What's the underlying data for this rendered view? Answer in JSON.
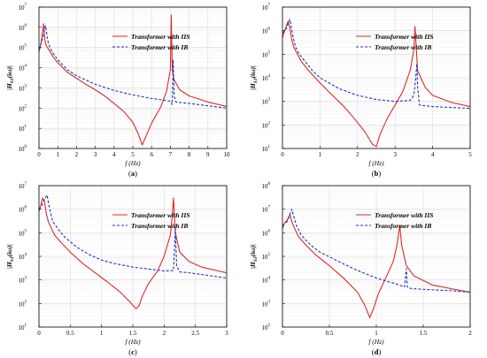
{
  "colors": {
    "iis": "#e02828",
    "ib": "#1f2fbf",
    "grid": "#d8d8d8",
    "axis": "#000000"
  },
  "chart_data": [
    {
      "type": "line",
      "panel_label": "(a)",
      "xlabel": "f (Hz)",
      "ylabel": "|H_SJ(iω)|",
      "xlim": [
        0,
        10
      ],
      "ylim_exponents": [
        0,
        7
      ],
      "yscale": "log",
      "grid": true,
      "legend": "top-right",
      "xticks": [
        0,
        1,
        2,
        3,
        4,
        5,
        6,
        7,
        8,
        9,
        10
      ],
      "xtick_labels": [
        "0",
        "1",
        "2",
        "3",
        "4",
        "5",
        "6",
        "7",
        "8",
        "9",
        "10"
      ],
      "series": [
        {
          "name": "Transformer with IIS",
          "color": "iis",
          "dash": false,
          "x": [
            0,
            0.1,
            0.15,
            0.2,
            0.25,
            0.3,
            0.35,
            0.45,
            0.6,
            0.8,
            1.0,
            1.5,
            2.0,
            2.5,
            3.0,
            3.5,
            4.0,
            4.5,
            5.0,
            5.3,
            5.5,
            5.7,
            6.0,
            6.5,
            6.8,
            7.0,
            7.05,
            7.1,
            7.2,
            7.5,
            8.0,
            9.0,
            10.0
          ],
          "y": [
            60000,
            150000,
            300000,
            700000,
            1500000,
            300000,
            150000,
            100000,
            60000,
            30000,
            18000,
            6000,
            3000,
            1500,
            800,
            400,
            170,
            70,
            20,
            5,
            1.5,
            4,
            18,
            120,
            700,
            8000,
            4000000,
            8000,
            2500,
            800,
            400,
            200,
            120
          ]
        },
        {
          "name": "Transformer with IB",
          "color": "ib",
          "dash": true,
          "x": [
            0,
            0.1,
            0.2,
            0.3,
            0.35,
            0.4,
            0.45,
            0.55,
            0.7,
            1.0,
            1.5,
            2.0,
            3.0,
            4.0,
            5.0,
            6.0,
            7.0,
            7.1,
            7.15,
            7.2,
            7.3,
            7.5,
            8.0,
            9.0,
            10.0
          ],
          "y": [
            80000,
            150000,
            300000,
            800000,
            1200000,
            600000,
            250000,
            120000,
            60000,
            25000,
            8000,
            4000,
            1500,
            750,
            450,
            300,
            220,
            150,
            25000,
            400,
            200,
            190,
            170,
            130,
            100
          ]
        }
      ]
    },
    {
      "type": "line",
      "panel_label": "(b)",
      "xlabel": "f (Hz)",
      "ylabel": "|H_SJ(iω)|",
      "xlim": [
        0,
        5
      ],
      "ylim_exponents": [
        1,
        7
      ],
      "yscale": "log",
      "grid": true,
      "legend": "top-right",
      "xticks": [
        0,
        1,
        2,
        3,
        4,
        5
      ],
      "xtick_labels": [
        "0",
        "1",
        "2",
        "3",
        "4",
        "5"
      ],
      "series": [
        {
          "name": "Transformer with IIS",
          "color": "iis",
          "dash": false,
          "x": [
            0,
            0.05,
            0.1,
            0.15,
            0.2,
            0.25,
            0.3,
            0.4,
            0.5,
            0.7,
            1.0,
            1.3,
            1.6,
            1.9,
            2.2,
            2.4,
            2.5,
            2.6,
            2.8,
            3.0,
            3.2,
            3.4,
            3.5,
            3.53,
            3.6,
            3.8,
            4.0,
            4.5,
            5.0
          ],
          "y": [
            500000,
            900000,
            1500000,
            2500000,
            1200000,
            400000,
            200000,
            100000,
            50000,
            20000,
            6000,
            2000,
            700,
            200,
            50,
            15,
            12,
            40,
            200,
            700,
            2500,
            20000,
            150000,
            1500000,
            20000,
            4000,
            1800,
            900,
            600
          ]
        },
        {
          "name": "Transformer with IB",
          "color": "ib",
          "dash": true,
          "x": [
            0,
            0.1,
            0.15,
            0.2,
            0.25,
            0.3,
            0.35,
            0.45,
            0.6,
            0.8,
            1.0,
            1.5,
            2.0,
            2.5,
            3.0,
            3.4,
            3.5,
            3.55,
            3.58,
            3.6,
            3.65,
            3.8,
            4.0,
            4.5,
            5.0
          ],
          "y": [
            800000,
            1200000,
            2000000,
            3000000,
            1000000,
            400000,
            200000,
            100000,
            50000,
            20000,
            10000,
            3500,
            1800,
            1200,
            1000,
            1100,
            1800,
            10000,
            40000,
            4000,
            700,
            650,
            600,
            550,
            500
          ]
        }
      ]
    },
    {
      "type": "line",
      "panel_label": "(c)",
      "xlabel": "f (Hz)",
      "ylabel": "|H_SJ(iω)|",
      "xlim": [
        0,
        3
      ],
      "ylim_exponents": [
        1,
        7
      ],
      "yscale": "log",
      "grid": true,
      "legend": "top-right",
      "xticks": [
        0,
        0.5,
        1,
        1.5,
        2,
        2.5,
        3
      ],
      "xtick_labels": [
        "0",
        "0.5",
        "1",
        "1.5",
        "2",
        "2.5",
        "3"
      ],
      "series": [
        {
          "name": "Transformer with IIS",
          "color": "iis",
          "dash": false,
          "x": [
            0,
            0.03,
            0.06,
            0.09,
            0.12,
            0.15,
            0.2,
            0.25,
            0.35,
            0.5,
            0.7,
            0.9,
            1.1,
            1.3,
            1.45,
            1.55,
            1.6,
            1.65,
            1.75,
            1.9,
            2.0,
            2.1,
            2.13,
            2.15,
            2.18,
            2.25,
            2.4,
            2.6,
            3.0
          ],
          "y": [
            800000,
            1500000,
            3000000,
            2000000,
            600000,
            300000,
            150000,
            80000,
            40000,
            15000,
            5000,
            2000,
            800,
            300,
            120,
            60,
            80,
            200,
            700,
            2500,
            10000,
            80000,
            500000,
            3000000,
            100000,
            15000,
            6000,
            3500,
            2000
          ]
        },
        {
          "name": "Transformer with IB",
          "color": "ib",
          "dash": true,
          "x": [
            0,
            0.05,
            0.1,
            0.13,
            0.15,
            0.18,
            0.22,
            0.3,
            0.4,
            0.6,
            0.8,
            1.0,
            1.2,
            1.5,
            1.8,
            2.0,
            2.15,
            2.18,
            2.2,
            2.25,
            2.4,
            2.6,
            3.0
          ],
          "y": [
            1000000,
            1500000,
            3000000,
            4000000,
            2000000,
            800000,
            300000,
            150000,
            70000,
            25000,
            12000,
            7000,
            5000,
            3500,
            2800,
            2400,
            2500,
            150000,
            4000,
            2200,
            2000,
            1700,
            1200
          ]
        }
      ]
    },
    {
      "type": "line",
      "panel_label": "(d)",
      "xlabel": "f (Hz)",
      "ylabel": "|H_SJ(iω)|",
      "xlim": [
        0,
        2
      ],
      "ylim_exponents": [
        2,
        8
      ],
      "yscale": "log",
      "grid": true,
      "legend": "top-right",
      "xticks": [
        0,
        0.5,
        1,
        1.5,
        2
      ],
      "xtick_labels": [
        "0",
        "0.5",
        "1",
        "1.5",
        "2"
      ],
      "series": [
        {
          "name": "Transformer with IIS",
          "color": "iis",
          "dash": false,
          "x": [
            0,
            0.02,
            0.05,
            0.08,
            0.1,
            0.13,
            0.17,
            0.25,
            0.35,
            0.5,
            0.65,
            0.8,
            0.88,
            0.93,
            0.97,
            1.02,
            1.1,
            1.18,
            1.22,
            1.25,
            1.27,
            1.32,
            1.4,
            1.6,
            2.0
          ],
          "y": [
            1500000,
            2500000,
            3500000,
            6000000,
            3000000,
            1500000,
            700000,
            300000,
            120000,
            40000,
            12000,
            3000,
            800,
            250,
            600,
            2500,
            12000,
            60000,
            300000,
            2000000,
            300000,
            40000,
            15000,
            6000,
            3000
          ]
        },
        {
          "name": "Transformer with IB",
          "color": "ib",
          "dash": true,
          "x": [
            0,
            0.05,
            0.08,
            0.1,
            0.12,
            0.15,
            0.2,
            0.3,
            0.4,
            0.6,
            0.8,
            1.0,
            1.2,
            1.3,
            1.32,
            1.33,
            1.35,
            1.4,
            1.6,
            1.8,
            2.0
          ],
          "y": [
            2000000,
            3000000,
            6000000,
            10000000,
            5000000,
            2000000,
            800000,
            300000,
            150000,
            60000,
            25000,
            12000,
            7000,
            5000,
            30000,
            5000,
            4500,
            4200,
            3800,
            3500,
            3000
          ]
        }
      ]
    }
  ]
}
